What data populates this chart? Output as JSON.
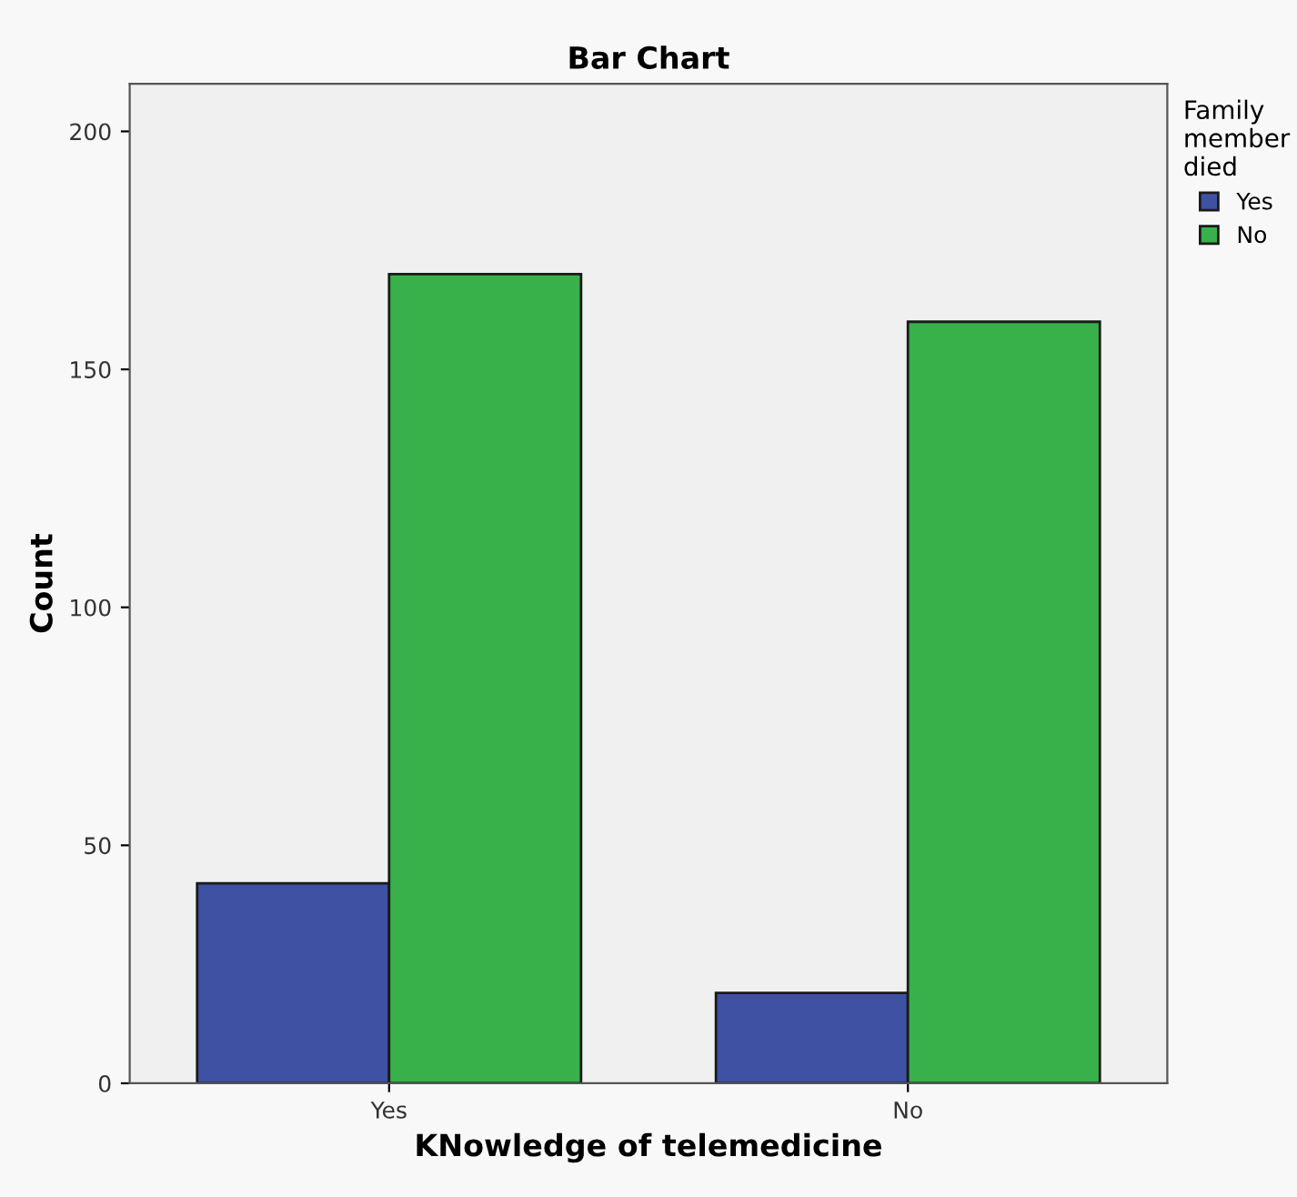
{
  "chart_data": {
    "type": "bar",
    "title": "Bar Chart",
    "xlabel": "KNowledge of telemedicine",
    "ylabel": "Count",
    "legend_title": "Family member died",
    "categories": [
      "Yes",
      "No"
    ],
    "series": [
      {
        "name": "Yes",
        "color": "#3f51a3",
        "values": [
          42,
          19
        ]
      },
      {
        "name": "No",
        "color": "#38b14a",
        "values": [
          170,
          160
        ]
      }
    ],
    "ylim": [
      0,
      210
    ],
    "yticks": [
      0,
      50,
      100,
      150,
      200
    ],
    "grid": false,
    "legend": "top right"
  }
}
